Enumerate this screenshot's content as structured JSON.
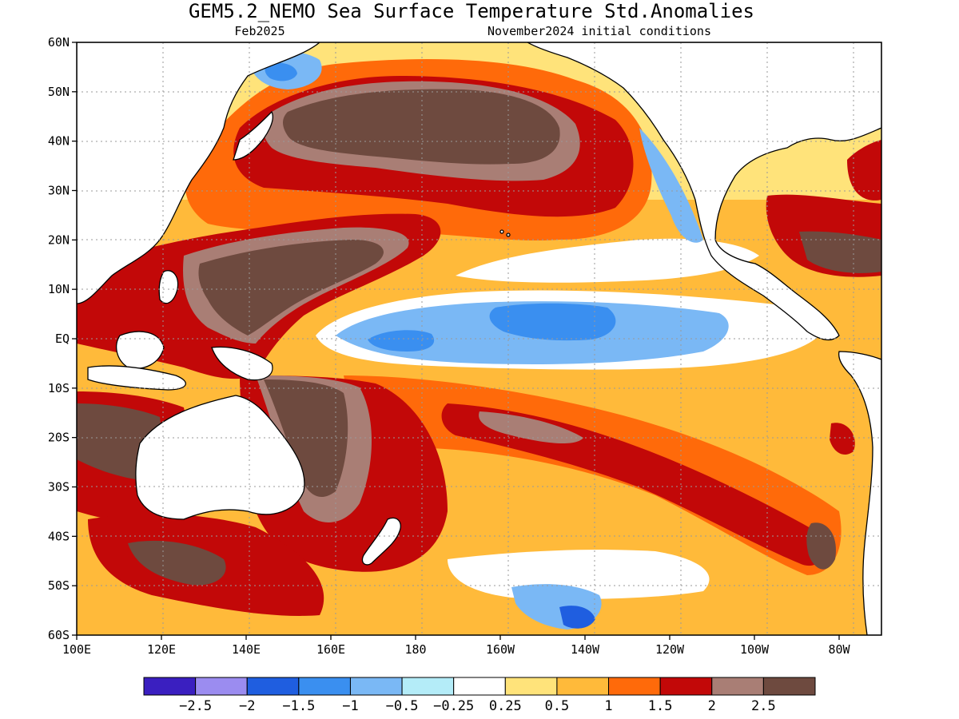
{
  "map": {
    "title": "GEM5.2_NEMO Sea Surface Temperature Std.Anomalies",
    "subtitle_left": "Feb2025",
    "subtitle_right": "November2024 initial conditions",
    "lat_labels": [
      "60N",
      "50N",
      "40N",
      "30N",
      "20N",
      "10N",
      "EQ",
      "10S",
      "20S",
      "30S",
      "40S",
      "50S",
      "60S"
    ],
    "lon_labels": [
      "100E",
      "120E",
      "140E",
      "160E",
      "180",
      "160W",
      "140W",
      "120W",
      "100W",
      "80W"
    ],
    "colorbar": {
      "colors": [
        "#3a1fc0",
        "#9b8cf0",
        "#1f5ee0",
        "#3a8ff0",
        "#7ab8f5",
        "#b4ecf8",
        "#ffffff",
        "#ffe37a",
        "#ffba3a",
        "#ff6a0a",
        "#c20808",
        "#a97e75",
        "#6e4a3f"
      ],
      "labels": [
        "−2.5",
        "−2",
        "−1.5",
        "−1",
        "−0.5",
        "−0.25",
        "0.25",
        "0.5",
        "1",
        "1.5",
        "2",
        "2.5"
      ]
    },
    "regions": [
      {
        "name": "warm-north-pacific-blob",
        "level": "2.5"
      },
      {
        "name": "warm-warm-pool",
        "level": "2.5"
      },
      {
        "name": "cool-equatorial-tongue",
        "level": "-0.5"
      },
      {
        "name": "cool-california-coast",
        "level": "-0.5"
      },
      {
        "name": "warm-south-pacific-band",
        "level": "2"
      },
      {
        "name": "warm-australia-east",
        "level": "2.5"
      }
    ]
  }
}
